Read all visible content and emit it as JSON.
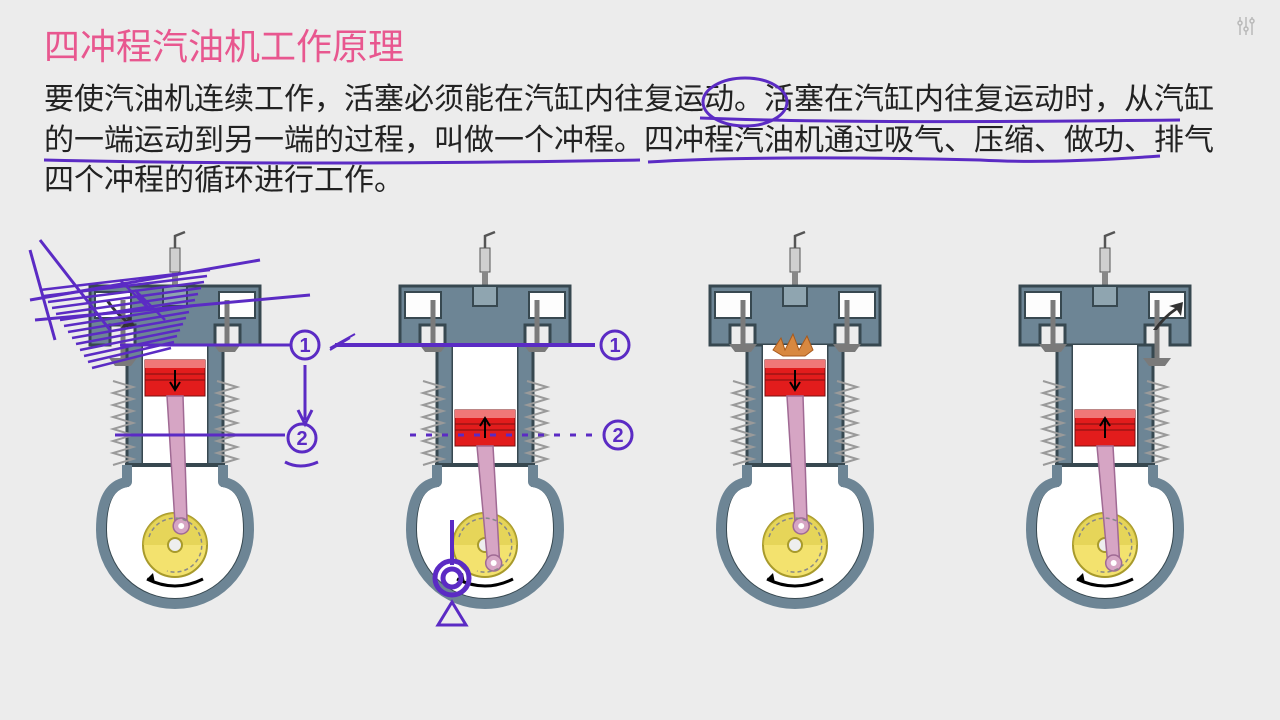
{
  "title": "四冲程汽油机工作原理",
  "paragraph": "要使汽油机连续工作，活塞必须能在汽缸内往复运动。活塞在汽缸内往复运动时，从汽缸的一端运动到另一端的过程，叫做一个冲程。四冲程汽油机通过吸气、压缩、做功、排气四个冲程的循环进行工作。",
  "colors": {
    "background": "#ececec",
    "title": "#e8578f",
    "text": "#222222",
    "annotation": "#5b2bc4",
    "engine_body": "#6d8595",
    "engine_body_light": "#8fa5b0",
    "piston": "#e21c1c",
    "piston_light": "#f07777",
    "valve": "#7a7a7a",
    "crank_wheel": "#f3e26e",
    "crank_wheel_dark": "#d9c844",
    "conrod": "#d6a5c4",
    "spring": "#9a9a9a",
    "combustion": "#d88840"
  },
  "diagram": {
    "type": "infographic",
    "count": 4,
    "strokes": [
      {
        "stroke": "intake",
        "intake_valve": "open",
        "exhaust_valve": "closed",
        "piston_pos": "upper-moving-down",
        "arrow": "down",
        "combustion": false
      },
      {
        "stroke": "compression",
        "intake_valve": "closed",
        "exhaust_valve": "closed",
        "piston_pos": "lower-moving-up",
        "arrow": "up",
        "combustion": false
      },
      {
        "stroke": "power",
        "intake_valve": "closed",
        "exhaust_valve": "closed",
        "piston_pos": "upper-moving-down",
        "arrow": "down",
        "combustion": true
      },
      {
        "stroke": "exhaust",
        "intake_valve": "closed",
        "exhaust_valve": "open",
        "piston_pos": "lower-moving-up",
        "arrow": "up",
        "combustion": false
      }
    ],
    "spark_plug_height": 40,
    "body_width": 170,
    "body_height": 300,
    "line_width": 3
  },
  "annotations": {
    "type": "handwritten",
    "stroke_color": "#5b2bc4",
    "stroke_width": 3,
    "labels": [
      "①",
      "②"
    ],
    "underlines": [
      {
        "text_span": "活塞在汽缸内往复运动时",
        "line": 1
      },
      {
        "text_span": "从汽缸的一端运动到另一端的过程",
        "line": 2
      },
      {
        "text_span": "叫做一个冲程",
        "line": 2
      }
    ],
    "circle_around": "活塞"
  }
}
